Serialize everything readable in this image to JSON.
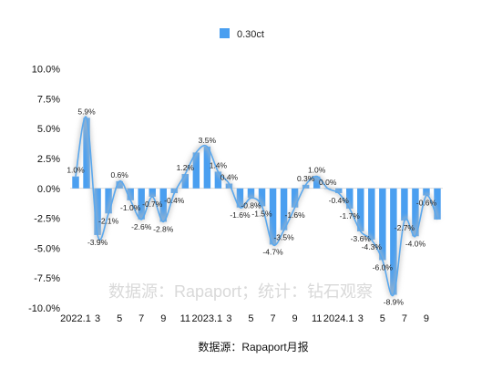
{
  "chart_data": {
    "type": "bar",
    "legend": {
      "position": "top-center",
      "entries": [
        "0.30ct"
      ]
    },
    "source_note": "数据源：Rapaport月报",
    "watermark": "数据源：Rapaport；统计：钻石观察",
    "y_ticks": [
      "10.0%",
      "7.5%",
      "5.0%",
      "2.5%",
      "0.0%",
      "-2.5%",
      "-5.0%",
      "-7.5%",
      "-10.0%"
    ],
    "ylim": [
      -10,
      10
    ],
    "x_tick_labels": [
      {
        "index": 0,
        "text": "2022.1"
      },
      {
        "index": 2,
        "text": "3"
      },
      {
        "index": 4,
        "text": "5"
      },
      {
        "index": 6,
        "text": "7"
      },
      {
        "index": 8,
        "text": "9"
      },
      {
        "index": 10,
        "text": "11"
      },
      {
        "index": 12,
        "text": "2023.1"
      },
      {
        "index": 14,
        "text": "3"
      },
      {
        "index": 16,
        "text": "5"
      },
      {
        "index": 18,
        "text": "7"
      },
      {
        "index": 20,
        "text": "9"
      },
      {
        "index": 22,
        "text": "11"
      },
      {
        "index": 24,
        "text": "2024.1"
      },
      {
        "index": 26,
        "text": "3"
      },
      {
        "index": 28,
        "text": "5"
      },
      {
        "index": 30,
        "text": "7"
      },
      {
        "index": 32,
        "text": "9"
      }
    ],
    "categories": [
      "2022.1",
      "2022.2",
      "2022.3",
      "2022.4",
      "2022.5",
      "2022.6",
      "2022.7",
      "2022.8",
      "2022.9",
      "2022.10",
      "2022.11",
      "2022.12",
      "2023.1",
      "2023.2",
      "2023.3",
      "2023.4",
      "2023.5",
      "2023.6",
      "2023.7",
      "2023.8",
      "2023.9",
      "2023.10",
      "2023.11",
      "2023.12",
      "2024.1",
      "2024.2",
      "2024.3",
      "2024.4",
      "2024.5",
      "2024.6",
      "2024.7",
      "2024.8",
      "2024.9",
      "2024.10"
    ],
    "series": [
      {
        "name": "0.30ct",
        "color": "#4a9ff0",
        "values": [
          1.0,
          5.9,
          -3.9,
          -2.1,
          0.6,
          -1.0,
          -2.6,
          -0.7,
          -2.8,
          -0.4,
          1.2,
          3.0,
          3.5,
          1.4,
          0.4,
          -1.6,
          -0.8,
          -1.5,
          -4.7,
          -3.5,
          -1.6,
          0.3,
          1.0,
          0.0,
          -0.4,
          -1.7,
          -3.6,
          -4.3,
          -6.0,
          -8.9,
          -2.7,
          -4.0,
          -0.6,
          -2.6
        ],
        "labels": [
          "1.0%",
          "5.9%",
          "-3.9%",
          "-2.1%",
          "0.6%",
          "-1.0%",
          "-2.6%",
          "-0.7%",
          "-2.8%",
          "-0.4%",
          "1.2%",
          "",
          "3.5%",
          "1.4%",
          "0.4%",
          "-1.6%",
          "-0.8%",
          "-1.5%",
          "-4.7%",
          "-3.5%",
          "-1.6%",
          "0.3%",
          "1.0%",
          "0.0%",
          "-0.4%",
          "-1.7%",
          "-3.6%",
          "-4.3%",
          "-6.0%",
          "-8.9%",
          "-2.7%",
          "-4.0%",
          "-0.6%",
          ""
        ]
      }
    ],
    "trend_line": {
      "type": "smoothed-line",
      "color": "#5aa8ee",
      "glow": true
    }
  }
}
